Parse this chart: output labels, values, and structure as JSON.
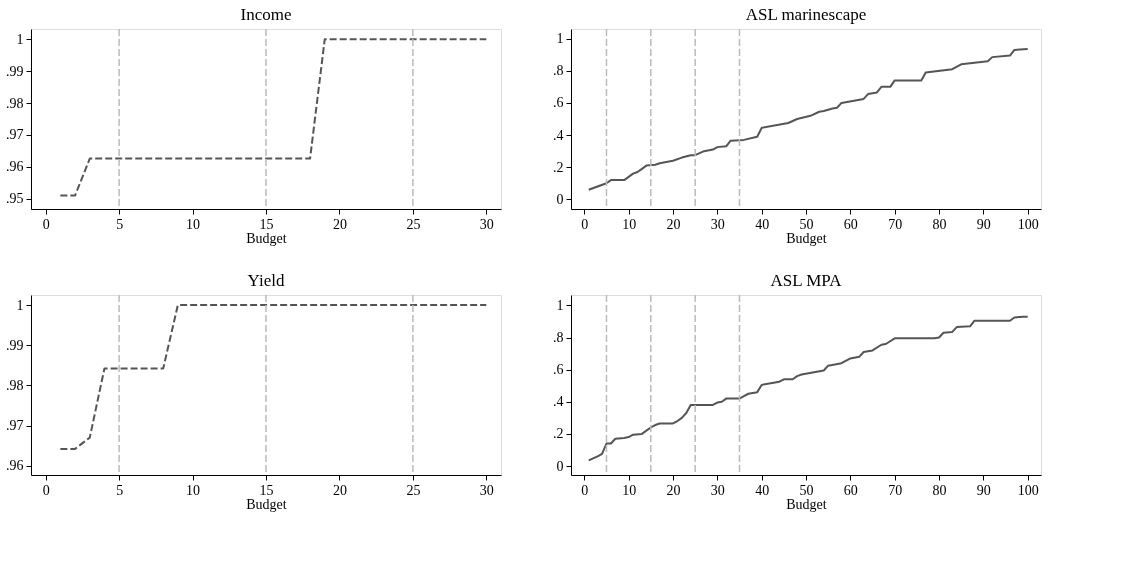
{
  "chart_data": [
    {
      "type": "line",
      "title": "Income",
      "xlabel": "Budget",
      "xlim": [
        -1,
        31
      ],
      "xticks": [
        0,
        5,
        10,
        15,
        20,
        25,
        30
      ],
      "ylim": [
        0.9468,
        1.0032
      ],
      "yticks": [
        {
          "value": 0.95,
          "label": ".95"
        },
        {
          "value": 0.96,
          "label": ".96"
        },
        {
          "value": 0.97,
          "label": ".97"
        },
        {
          "value": 0.98,
          "label": ".98"
        },
        {
          "value": 0.99,
          "label": ".99"
        },
        {
          "value": 1,
          "label": "1"
        }
      ],
      "grid": false,
      "legend": false,
      "line_style": "dashed",
      "marker": "none",
      "ref_lines": [
        {
          "axis": "x",
          "value": 5,
          "color": "#bbbbbb",
          "line_style": "dashed"
        },
        {
          "axis": "x",
          "value": 15,
          "color": "#bbbbbb",
          "line_style": "dashed"
        },
        {
          "axis": "x",
          "value": 25,
          "color": "#bbbbbb",
          "line_style": "dashed"
        }
      ],
      "series": [
        {
          "color": "#555555",
          "x": [
            1,
            2,
            3,
            18,
            19,
            30
          ],
          "values": [
            0.951,
            0.951,
            0.9626,
            0.9626,
            1,
            1
          ]
        }
      ]
    },
    {
      "type": "line",
      "title": "ASL marinescape",
      "xlabel": "Budget",
      "xlim": [
        -3,
        103
      ],
      "xticks": [
        0,
        10,
        20,
        30,
        40,
        50,
        60,
        70,
        80,
        90,
        100
      ],
      "ylim": [
        -0.06,
        1.06
      ],
      "yticks": [
        {
          "value": 0,
          "label": "0"
        },
        {
          "value": 0.2,
          "label": ".2"
        },
        {
          "value": 0.4,
          "label": ".4"
        },
        {
          "value": 0.6,
          "label": ".6"
        },
        {
          "value": 0.8,
          "label": ".8"
        },
        {
          "value": 1,
          "label": "1"
        }
      ],
      "grid": false,
      "legend": false,
      "line_style": "solid",
      "marker": "none",
      "ref_lines": [
        {
          "axis": "x",
          "value": 5,
          "color": "#bbbbbb",
          "line_style": "dashed"
        },
        {
          "axis": "x",
          "value": 15,
          "color": "#bbbbbb",
          "line_style": "dashed"
        },
        {
          "axis": "x",
          "value": 25,
          "color": "#bbbbbb",
          "line_style": "dashed"
        },
        {
          "axis": "x",
          "value": 35,
          "color": "#bbbbbb",
          "line_style": "dashed"
        }
      ],
      "series": [
        {
          "color": "#555555",
          "x": [
            1,
            3,
            5,
            6,
            9,
            10,
            11,
            12,
            13,
            14,
            16,
            17,
            20,
            22,
            24,
            25,
            27,
            29,
            30,
            32,
            33,
            36,
            39,
            40,
            46,
            48,
            51,
            53,
            54,
            56,
            57,
            58,
            63,
            64,
            66,
            67,
            69,
            70,
            76,
            77,
            83,
            85,
            91,
            92,
            96,
            97,
            100
          ],
          "values": [
            0.06,
            0.08,
            0.1,
            0.12,
            0.12,
            0.14,
            0.16,
            0.17,
            0.19,
            0.21,
            0.215,
            0.225,
            0.24,
            0.26,
            0.275,
            0.275,
            0.3,
            0.31,
            0.325,
            0.33,
            0.365,
            0.37,
            0.39,
            0.445,
            0.475,
            0.5,
            0.52,
            0.545,
            0.55,
            0.565,
            0.57,
            0.6,
            0.625,
            0.655,
            0.665,
            0.7,
            0.7,
            0.74,
            0.74,
            0.79,
            0.81,
            0.84,
            0.86,
            0.885,
            0.895,
            0.93,
            0.935
          ]
        }
      ]
    },
    {
      "type": "line",
      "title": "Yield",
      "xlabel": "Budget",
      "xlim": [
        -1,
        31
      ],
      "xticks": [
        0,
        5,
        10,
        15,
        20,
        25,
        30
      ],
      "ylim": [
        0.9577,
        1.0025
      ],
      "yticks": [
        {
          "value": 0.96,
          "label": ".96"
        },
        {
          "value": 0.97,
          "label": ".97"
        },
        {
          "value": 0.98,
          "label": ".98"
        },
        {
          "value": 0.99,
          "label": ".99"
        },
        {
          "value": 1,
          "label": "1"
        }
      ],
      "grid": false,
      "legend": false,
      "line_style": "dashed",
      "marker": "none",
      "ref_lines": [
        {
          "axis": "x",
          "value": 5,
          "color": "#bbbbbb",
          "line_style": "dashed"
        },
        {
          "axis": "x",
          "value": 15,
          "color": "#bbbbbb",
          "line_style": "dashed"
        },
        {
          "axis": "x",
          "value": 25,
          "color": "#bbbbbb",
          "line_style": "dashed"
        }
      ],
      "series": [
        {
          "color": "#555555",
          "x": [
            1,
            2,
            3,
            4,
            8,
            9,
            30
          ],
          "values": [
            0.9642,
            0.9642,
            0.967,
            0.9842,
            0.9842,
            1,
            1
          ]
        }
      ]
    },
    {
      "type": "line",
      "title": "ASL MPA",
      "xlabel": "Budget",
      "xlim": [
        -3,
        103
      ],
      "xticks": [
        0,
        10,
        20,
        30,
        40,
        50,
        60,
        70,
        80,
        90,
        100
      ],
      "ylim": [
        -0.056,
        1.065
      ],
      "yticks": [
        {
          "value": 0,
          "label": "0"
        },
        {
          "value": 0.2,
          "label": ".2"
        },
        {
          "value": 0.4,
          "label": ".4"
        },
        {
          "value": 0.6,
          "label": ".6"
        },
        {
          "value": 0.8,
          "label": ".8"
        },
        {
          "value": 1,
          "label": "1"
        }
      ],
      "grid": false,
      "legend": false,
      "line_style": "solid",
      "marker": "none",
      "ref_lines": [
        {
          "axis": "x",
          "value": 5,
          "color": "#bbbbbb",
          "line_style": "dashed"
        },
        {
          "axis": "x",
          "value": 15,
          "color": "#bbbbbb",
          "line_style": "dashed"
        },
        {
          "axis": "x",
          "value": 25,
          "color": "#bbbbbb",
          "line_style": "dashed"
        },
        {
          "axis": "x",
          "value": 35,
          "color": "#bbbbbb",
          "line_style": "dashed"
        }
      ],
      "series": [
        {
          "color": "#555555",
          "x": [
            1,
            3,
            4,
            5,
            6,
            7,
            9,
            10,
            11,
            13,
            14,
            15,
            16,
            17,
            20,
            21,
            22,
            23,
            24,
            29,
            30,
            31,
            32,
            35,
            36,
            37,
            39,
            40,
            44,
            45,
            47,
            48,
            49,
            54,
            55,
            58,
            60,
            62,
            63,
            65,
            67,
            68,
            70,
            79,
            80,
            81,
            83,
            84,
            87,
            88,
            96,
            97,
            99,
            100
          ],
          "values": [
            0.035,
            0.06,
            0.075,
            0.14,
            0.14,
            0.17,
            0.175,
            0.18,
            0.195,
            0.2,
            0.22,
            0.24,
            0.255,
            0.265,
            0.265,
            0.28,
            0.3,
            0.33,
            0.38,
            0.38,
            0.395,
            0.4,
            0.42,
            0.42,
            0.435,
            0.45,
            0.46,
            0.505,
            0.525,
            0.54,
            0.54,
            0.56,
            0.57,
            0.595,
            0.625,
            0.64,
            0.67,
            0.68,
            0.71,
            0.72,
            0.755,
            0.76,
            0.795,
            0.795,
            0.8,
            0.83,
            0.835,
            0.865,
            0.87,
            0.905,
            0.905,
            0.925,
            0.93,
            0.93
          ]
        }
      ]
    }
  ]
}
